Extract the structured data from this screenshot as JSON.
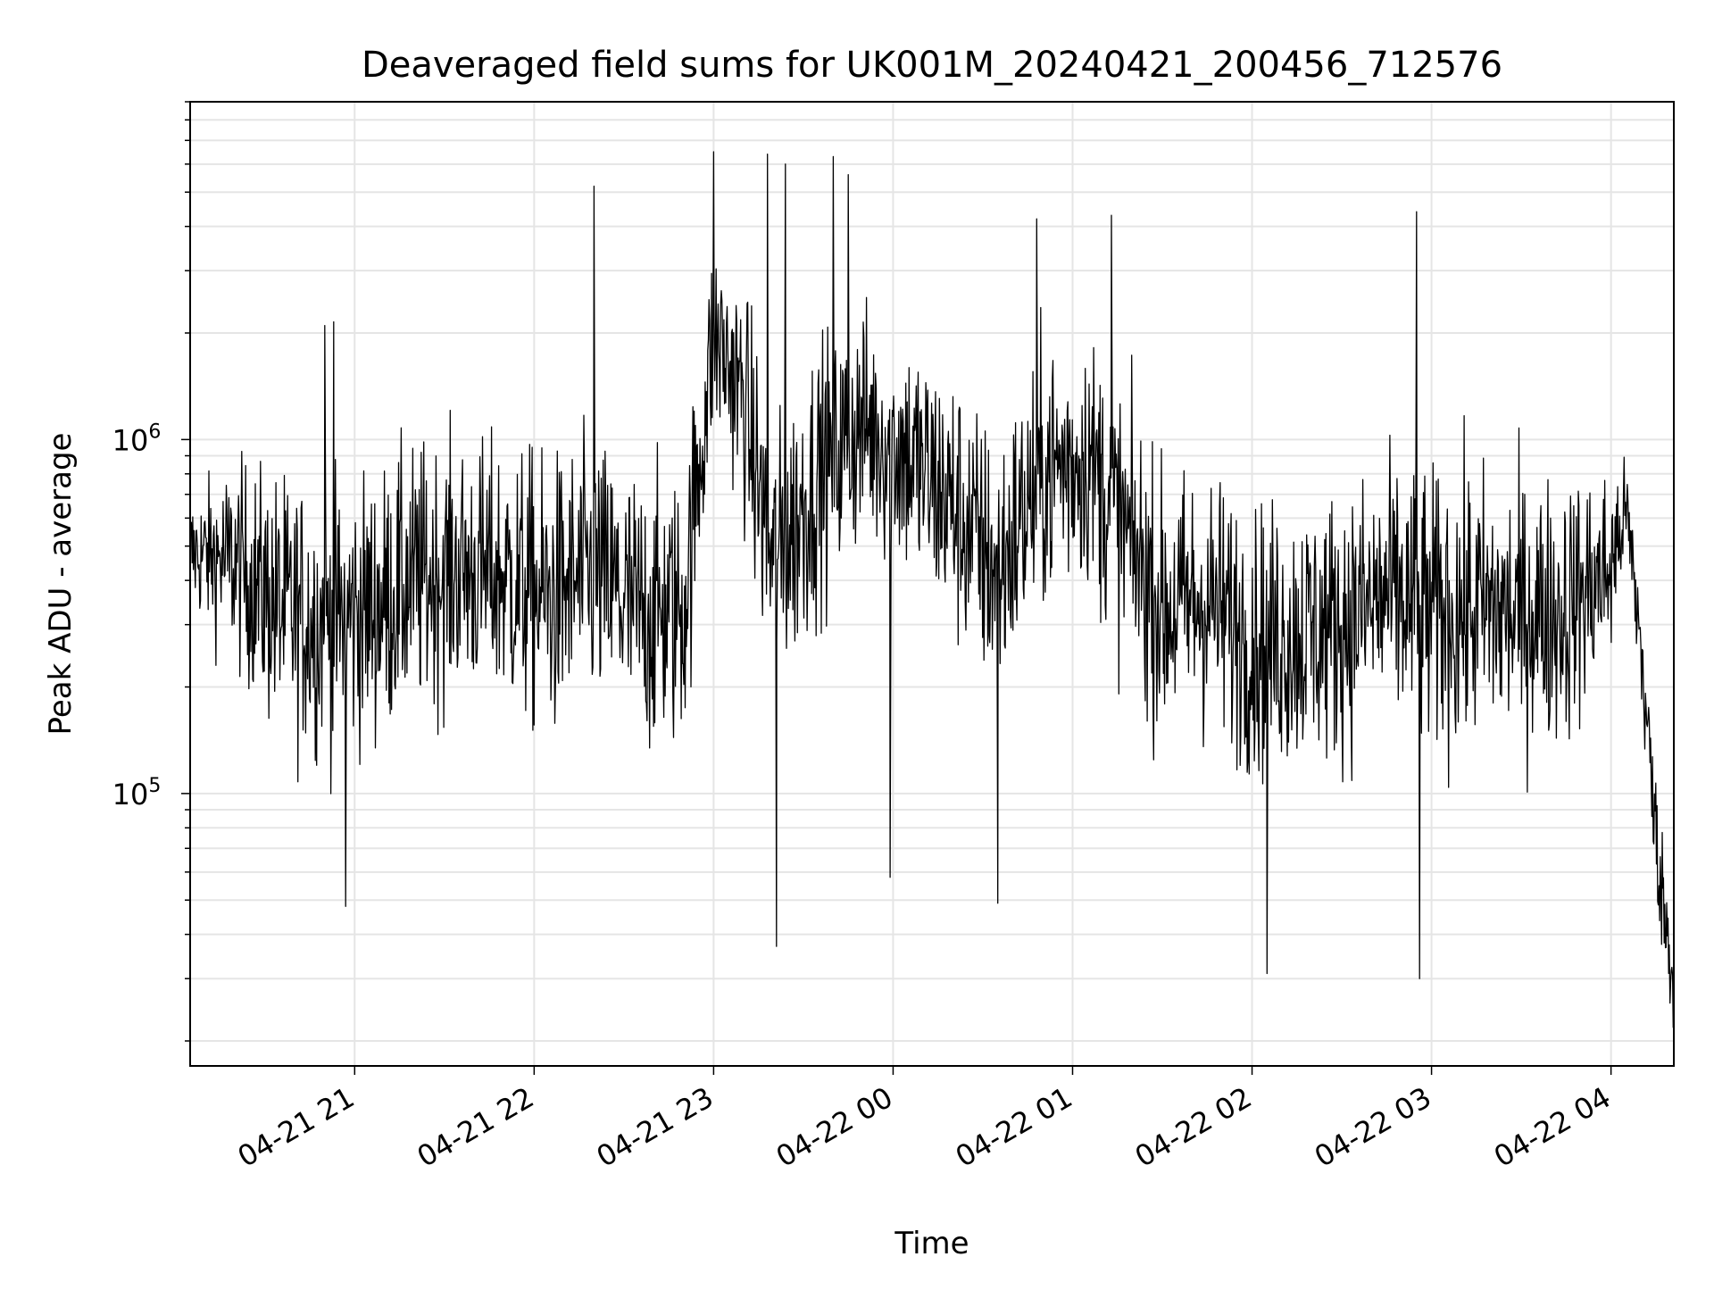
{
  "chart_data": {
    "type": "line",
    "title": "Deaveraged field sums for UK001M_20240421_200456_712576",
    "xlabel": "Time",
    "ylabel": "Peak ADU - average",
    "yscale": "log",
    "ylim": [
      17000,
      9000000
    ],
    "xlim": [
      "04-21 20:05",
      "04-22 04:21"
    ],
    "x_tick_labels": [
      "04-21 21",
      "04-21 22",
      "04-21 23",
      "04-22 00",
      "04-22 01",
      "04-22 02",
      "04-22 03",
      "04-22 04"
    ],
    "y_tick_labels": [
      {
        "base": "10",
        "exp": "5",
        "value": 100000
      },
      {
        "base": "10",
        "exp": "6",
        "value": 1000000
      }
    ],
    "grid": true,
    "legend": "none",
    "line_color": "#000000",
    "grid_color": "#e5e5e5",
    "series": [
      {
        "x": [
          "04-21 20:05",
          "04-21 20:20",
          "04-21 20:35",
          "04-21 20:50",
          "04-21 21:05",
          "04-21 21:20",
          "04-21 21:35",
          "04-21 21:50",
          "04-21 22:05",
          "04-21 22:20",
          "04-21 22:35",
          "04-21 22:50",
          "04-21 23:00",
          "04-21 23:10",
          "04-21 23:20",
          "04-21 23:35",
          "04-21 23:50",
          "04-22 00:05",
          "04-22 00:20",
          "04-22 00:35",
          "04-22 00:50",
          "04-22 01:05",
          "04-22 01:15",
          "04-22 01:30",
          "04-22 01:45",
          "04-22 02:00",
          "04-22 02:15",
          "04-22 02:30",
          "04-22 02:45",
          "04-22 03:00",
          "04-22 03:15",
          "04-22 03:30",
          "04-22 03:45",
          "04-22 04:00",
          "04-22 04:05",
          "04-22 04:10",
          "04-22 04:15",
          "04-22 04:21"
        ],
        "median": [
          480000,
          450000,
          330000,
          300000,
          330000,
          400000,
          430000,
          410000,
          350000,
          420000,
          320000,
          330000,
          2000000,
          1300000,
          420000,
          800000,
          1100000,
          900000,
          650000,
          420000,
          800000,
          900000,
          600000,
          330000,
          350000,
          270000,
          280000,
          300000,
          360000,
          320000,
          330000,
          320000,
          330000,
          430000,
          650000,
          260000,
          75000,
          28000
        ],
        "spread": [
          1.4,
          1.8,
          2.2,
          2.2,
          2.2,
          2.2,
          2.1,
          2.2,
          2.3,
          2.2,
          2.3,
          2.2,
          1.8,
          2.0,
          2.3,
          2.2,
          2.0,
          2.1,
          2.2,
          2.2,
          2.2,
          2.1,
          2.2,
          2.2,
          2.2,
          2.2,
          2.2,
          2.2,
          2.2,
          2.3,
          2.3,
          2.2,
          2.2,
          1.8,
          1.3,
          1.5,
          1.5,
          1.3
        ]
      }
    ],
    "spikes": [
      {
        "x": "04-21 20:50",
        "y": 2100000
      },
      {
        "x": "04-21 20:53",
        "y": 2150000
      },
      {
        "x": "04-21 20:57",
        "y": 48000
      },
      {
        "x": "04-21 22:20",
        "y": 5200000
      },
      {
        "x": "04-21 23:00",
        "y": 6500000
      },
      {
        "x": "04-21 23:18",
        "y": 6400000
      },
      {
        "x": "04-21 23:21",
        "y": 37000
      },
      {
        "x": "04-21 23:24",
        "y": 6000000
      },
      {
        "x": "04-21 23:40",
        "y": 6300000
      },
      {
        "x": "04-21 23:45",
        "y": 5600000
      },
      {
        "x": "04-21 23:59",
        "y": 58000
      },
      {
        "x": "04-22 00:35",
        "y": 49000
      },
      {
        "x": "04-22 00:48",
        "y": 4200000
      },
      {
        "x": "04-22 01:13",
        "y": 4300000
      },
      {
        "x": "04-22 02:05",
        "y": 31000
      },
      {
        "x": "04-22 02:55",
        "y": 4400000
      },
      {
        "x": "04-22 02:56",
        "y": 30000
      }
    ]
  }
}
